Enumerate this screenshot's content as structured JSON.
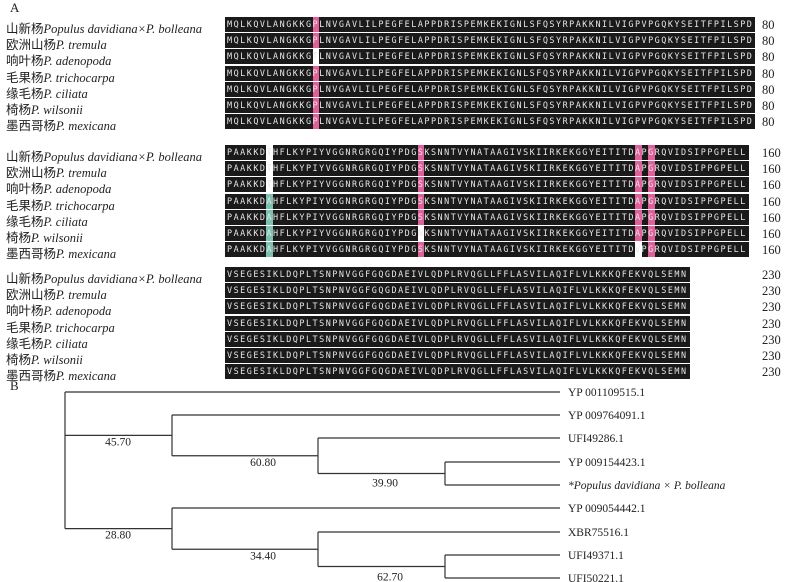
{
  "panel_a_label": "A",
  "panel_b_label": "B",
  "species": [
    {
      "cn": "山新杨",
      "latin": "Populus davidiana×P. bolleana"
    },
    {
      "cn": "欧洲山杨",
      "latin": "P. tremula"
    },
    {
      "cn": "响叶杨",
      "latin": "P. adenopoda"
    },
    {
      "cn": "毛果杨",
      "latin": "P. trichocarpa"
    },
    {
      "cn": "缘毛杨",
      "latin": "P. ciliata"
    },
    {
      "cn": "椅杨",
      "latin": "P. wilsonii"
    },
    {
      "cn": "墨西哥杨",
      "latin": "P. mexicana"
    }
  ],
  "alignment_blocks": [
    {
      "end": "80",
      "seqs": [
        "MQLKQVLANGKKGPLNVGAVLILPEGFELAPPDRISPEMKEKIGNLSFQSYRPAKKNILVIGPVPGQKYSEITFPILSPD",
        "MQLKQVLANGKKGPLNVGAVLILPEGFELAPPDRISPEMKEKIGNLSFQSYRPAKKNILVIGPVPGQKYSEITFPILSPD",
        "MQLKQVLANGKKGTLNVGAVLILPEGFELAPPDRISPEMKEKIGNLSFQSYRPAKKNILVIGPVPGQKYSEITFPILSPD",
        "MQLKQVLANGKKGPLNVGAVLILPEGFELAPPDRISPEMKEKIGNLSFQSYRPAKKNILVIGPVPGQKYSEITFPILSPD",
        "MQLKQVLANGKKGPLNVGAVLILPEGFELAPPDRISPEMKEKIGNLSFQSYRPAKKNILVIGPVPGQKYSEITFPILSPD",
        "MQLKQVLANGKKGPLNVGAVLILPEGFELAPPDRISPEMKEKIGNLSFQSYRPAKKNILVIGPVPGQKYSEITFPILSPD",
        "MQLKQVLANGKKGPLNVGAVLILPEGFELAPPDRISPEMKEKIGNLSFQSYRPAKKNILVIGPVPGQKYSEITFPILSPD"
      ]
    },
    {
      "end": "160",
      "seqs": [
        "PAAKKDTHFLKYPIYVGGNRGRGQIYPDGSKSNNTVYNATAAGIVSKIIRKEKGGYEITITDAPGRQVIDSIPPGPELL",
        "PAAKKDTHFLKYPIYVGGNRGRGQIYPDGSKSNNTVYNATAAGIVSKIIRKEKGGYEITITDAPGRQVIDSIPPGPELL",
        "PAAKKDTHFLKYPIYVGGNRGRGQIYPDGSKSNNTVYNATAAGIVSKIIRKEKGGYEITITDAPGRQVIDSIPPGPELL",
        "PAAKKDAHFLKYPIYVGGNRGRGQIYPDGSKSNNTVYNATAAGIVSKIIRKEKGGYEITITDAPGRQVIDSIPPGPELL",
        "PAAKKDAHFLKYPIYVGGNRGRGQIYPDGSKSNNTVYNATAAGIVSKIIRKEKGGYEITITDAPGRQVIDSIPPGPELL",
        "PAAKKDAHFLKYPIYVGGNRGRGQIYPDGNKSNNTVYNATAAGIVSKIIRKEKGGYEITITDAPGRQVIDSIPPGPELL",
        "PAAKKDAHFLKYPIYVGGNRGRGQIYPDGSKSNNTVYNATAAGIVSKIIRKEKGGYEITITDVPGRQVIDSIPPGPELL"
      ]
    },
    {
      "end": "230",
      "seqs": [
        "VSEGESIKLDQPLTSNPNVGGFGQGDAEIVLQDPLRVQGLLFFLASVILAQIFLVLKKKQFEKVQLSEMN",
        "VSEGESIKLDQPLTSNPNVGGFGQGDAEIVLQDPLRVQGLLFFLASVILAQIFLVLKKKQFEKVQLSEMN",
        "VSEGESIKLDQPLTSNPNVGGFGQGDAEIVLQDPLRVQGLLFFLASVILAQIFLVLKKKQFEKVQLSEMN",
        "VSEGESIKLDQPLTSNPNVGGFGQGDAEIVLQDPLRVQGLLFFLASVILAQIFLVLKKKQFEKVQLSEMN",
        "VSEGESIKLDQPLTSNPNVGGFGQGDAEIVLQDPLRVQGLLFFLASVILAQIFLVLKKKQFEKVQLSEMN",
        "VSEGESIKLDQPLTSNPNVGGFGQGDAEIVLQDPLRVQGLLFFLASVILAQIFLVLKKKQFEKVQLSEMN",
        "VSEGESIKLDQPLTSNPNVGGFGQGDAEIVLQDPLRVQGLLFFLASVILAQIFLVLKKKQFEKVQLSEMN"
      ]
    }
  ],
  "colors": {
    "pink": "#e0609a",
    "white": "#ffffff",
    "teal": "#7fc0b0",
    "black": "#1a1a1a"
  },
  "tree": {
    "leaves": [
      "YP 001109515.1",
      "YP 009764091.1",
      "UFI49286.1",
      "YP 009154423.1",
      "*Populus davidiana × P. bolleana",
      "YP 009054442.1",
      "XBR75516.1",
      "UFI49371.1",
      "UFI50221.1"
    ],
    "bootstraps": [
      "45.70",
      "60.80",
      "39.90",
      "28.80",
      "34.40",
      "62.70"
    ]
  }
}
